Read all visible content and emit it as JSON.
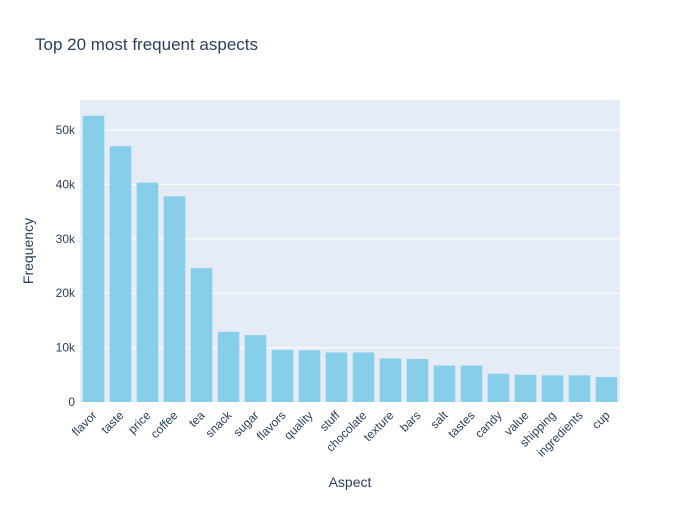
{
  "chart_data": {
    "type": "bar",
    "title": "Top 20 most frequent aspects",
    "xlabel": "Aspect",
    "ylabel": "Frequency",
    "categories": [
      "flavor",
      "taste",
      "price",
      "coffee",
      "tea",
      "snack",
      "sugar",
      "flavors",
      "quality",
      "stuff",
      "chocolate",
      "texture",
      "bars",
      "salt",
      "tastes",
      "candy",
      "value",
      "shipping",
      "ingredients",
      "cup"
    ],
    "values": [
      52600,
      47000,
      40300,
      37800,
      24600,
      12900,
      12300,
      9600,
      9500,
      9100,
      9100,
      8000,
      7900,
      6700,
      6700,
      5200,
      5000,
      4900,
      4900,
      4600
    ],
    "ylim": [
      0,
      55500
    ],
    "yticks": [
      0,
      10000,
      20000,
      30000,
      40000,
      50000
    ],
    "ytick_labels": [
      "0",
      "10k",
      "20k",
      "30k",
      "40k",
      "50k"
    ],
    "grid": true,
    "colors": {
      "bar": "#87ceeb",
      "plot_bg": "#e5ecf6",
      "grid": "#ffffff",
      "text": "#2a3f5f"
    }
  }
}
